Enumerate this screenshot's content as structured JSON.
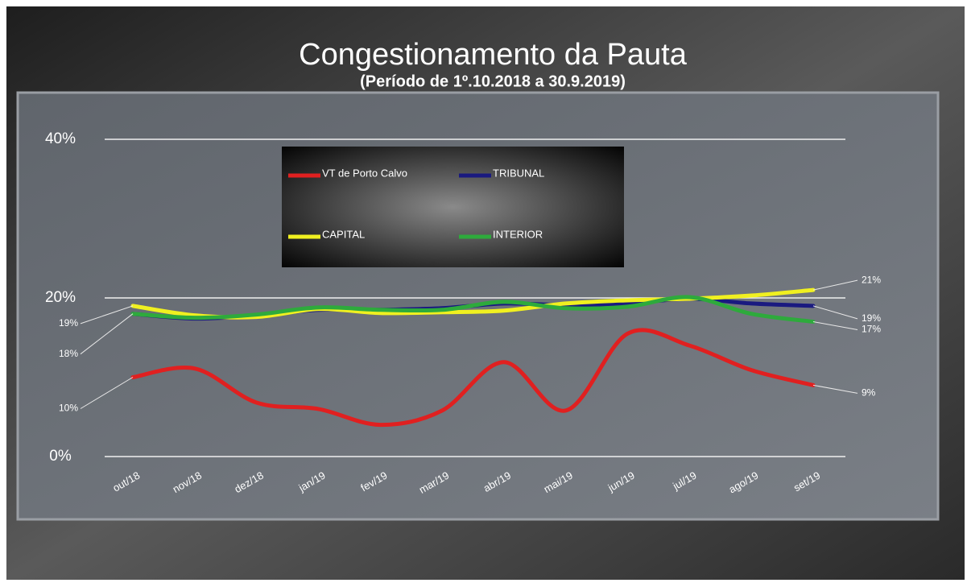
{
  "chart_data": {
    "type": "line",
    "title": "Congestionamento da Pauta",
    "subtitle": "(Período de 1º.10.2018  a  30.9.2019)",
    "categories": [
      "out/18",
      "nov/18",
      "dez/18",
      "jan/19",
      "fev/19",
      "mar/19",
      "abr/19",
      "mai/19",
      "jun/19",
      "jul/19",
      "ago/19",
      "set/19"
    ],
    "ylim": [
      0,
      40
    ],
    "yticks": [
      {
        "value": 0,
        "label": "0%"
      },
      {
        "value": 20,
        "label": "20%"
      },
      {
        "value": 40,
        "label": "40%"
      }
    ],
    "grid": true,
    "series": [
      {
        "name": "VT de Porto Calvo",
        "color": "#e02020",
        "values": [
          10,
          11.1,
          6.8,
          6.0,
          4.0,
          5.8,
          11.9,
          5.8,
          15.5,
          14.0,
          10.9,
          9
        ],
        "value_labels": [
          "10%",
          null,
          null,
          null,
          null,
          null,
          null,
          null,
          null,
          null,
          null,
          "9%"
        ]
      },
      {
        "name": "TRIBUNAL",
        "color": "#1a1a80",
        "values": [
          18,
          17.4,
          17.8,
          18.5,
          18.5,
          18.7,
          19.3,
          19.1,
          19.3,
          19.9,
          19.3,
          19
        ],
        "value_labels": [
          null,
          null,
          null,
          null,
          null,
          null,
          null,
          null,
          null,
          null,
          null,
          "19%"
        ]
      },
      {
        "name": "CAPITAL",
        "color": "#f0f020",
        "values": [
          19,
          17.8,
          17.6,
          18.6,
          18.1,
          18.2,
          18.4,
          19.3,
          19.7,
          19.9,
          20.3,
          21
        ],
        "value_labels": [
          "19%",
          null,
          null,
          null,
          null,
          null,
          null,
          null,
          null,
          null,
          null,
          "21%"
        ]
      },
      {
        "name": "INTERIOR",
        "color": "#2eaa3c",
        "values": [
          18,
          17.5,
          17.9,
          18.8,
          18.5,
          18.5,
          19.5,
          18.7,
          18.9,
          20.1,
          18.0,
          17
        ],
        "value_labels": [
          "18%",
          null,
          null,
          null,
          null,
          null,
          null,
          null,
          null,
          null,
          null,
          "17%"
        ]
      }
    ]
  }
}
